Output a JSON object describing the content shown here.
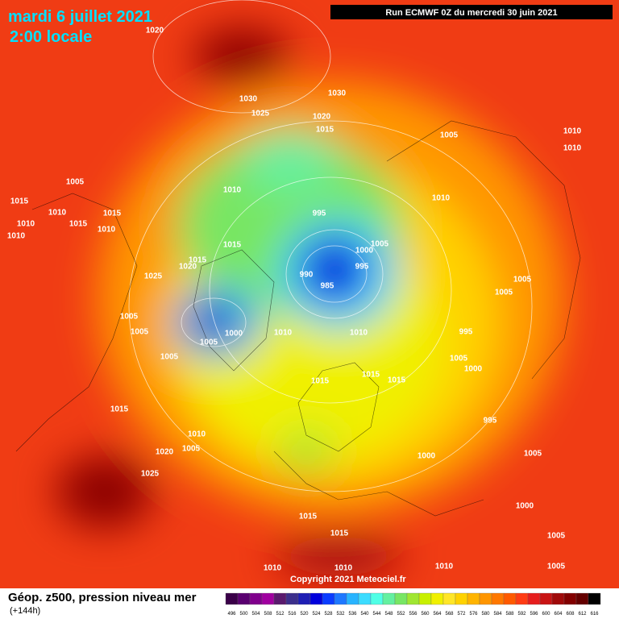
{
  "header": {
    "date": "mardi 6 juillet 2021",
    "time": "2:00 locale",
    "run": "Run ECMWF 0Z du mercredi 30 juin 2021"
  },
  "footer": {
    "title": "Géop. z500, pression niveau mer",
    "range": "(+144h)",
    "copyright": "Copyright 2021 Meteociel.fr"
  },
  "legend": {
    "values": [
      496,
      500,
      504,
      508,
      512,
      516,
      520,
      524,
      528,
      532,
      536,
      540,
      544,
      548,
      552,
      556,
      560,
      564,
      568,
      572,
      576,
      580,
      584,
      588,
      592,
      596,
      600,
      604,
      608,
      612,
      616
    ],
    "colors": [
      "#3a0048",
      "#5a0070",
      "#80008c",
      "#a000a0",
      "#5a1a6e",
      "#3c2f8c",
      "#1e1eb4",
      "#0000dc",
      "#0a3cff",
      "#1e78ff",
      "#28b4ff",
      "#3cdcff",
      "#50ffe6",
      "#64f0a0",
      "#78e664",
      "#a0e632",
      "#c8f000",
      "#f0f000",
      "#ffe628",
      "#ffd200",
      "#ffb400",
      "#ff9600",
      "#ff7800",
      "#ff5a00",
      "#ff3c14",
      "#e61e1e",
      "#c81414",
      "#a00a0a",
      "#820000",
      "#640000",
      "#000000"
    ]
  },
  "isobars": {
    "labels": [
      1020,
      1030,
      1030,
      1025,
      1020,
      1015,
      1005,
      1010,
      1010,
      1010,
      1015,
      1010,
      1015,
      1015,
      1010,
      1010,
      1005,
      995,
      1005,
      1000,
      995,
      990,
      985,
      1015,
      1020,
      1025,
      1015,
      1005,
      1005,
      1005,
      1000,
      1005,
      1010,
      1010,
      995,
      1005,
      1000,
      1015,
      1015,
      1015,
      1015,
      995,
      1010,
      1005,
      1020,
      1025,
      1000,
      1015,
      1015,
      1010,
      1010,
      1010,
      1005,
      1005,
      1000,
      1005,
      1010,
      1010,
      1005,
      1005
    ]
  }
}
